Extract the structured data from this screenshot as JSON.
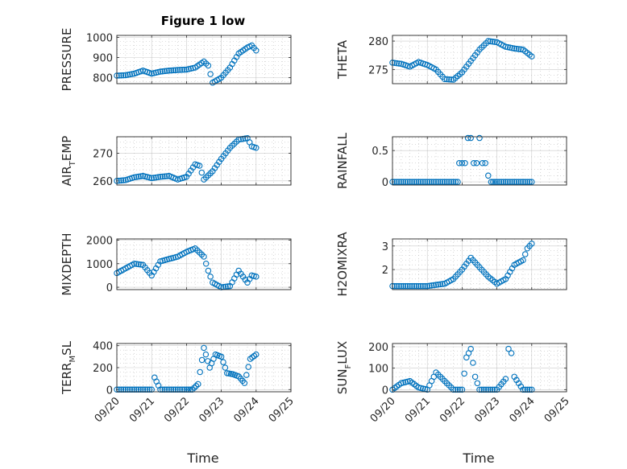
{
  "figure": {
    "title": "Figure 1 low"
  },
  "chart_data": [
    {
      "type": "scatter",
      "ylabel": "PRESSURE",
      "x_ticks": [
        "09/20",
        "09/21",
        "09/22",
        "09/23",
        "09/24",
        "09/25"
      ],
      "y_ticks": [
        "800",
        "900",
        "1000"
      ],
      "ylim": [
        770,
        1010
      ],
      "grid": true,
      "x": [
        "09/20 00:00",
        "09/20 06:00",
        "09/20 12:00",
        "09/20 18:00",
        "09/21 00:00",
        "09/21 06:00",
        "09/21 12:00",
        "09/21 18:00",
        "09/22 00:00",
        "09/22 06:00",
        "09/22 09:00",
        "09/22 12:00",
        "09/22 15:00",
        "09/22 18:00",
        "09/23 00:00",
        "09/23 06:00",
        "09/23 12:00",
        "09/23 18:00",
        "09/23 21:00",
        "09/24 00:00"
      ],
      "values": [
        810,
        812,
        820,
        835,
        820,
        830,
        835,
        838,
        840,
        850,
        865,
        880,
        860,
        775,
        800,
        850,
        920,
        950,
        960,
        935
      ]
    },
    {
      "type": "scatter",
      "ylabel": "THETA",
      "x_ticks": [
        "09/20",
        "09/21",
        "09/22",
        "09/23",
        "09/24",
        "09/25"
      ],
      "y_ticks": [
        "275",
        "280"
      ],
      "ylim": [
        272.5,
        281
      ],
      "grid": true,
      "x": [
        "09/20 00:00",
        "09/20 06:00",
        "09/20 12:00",
        "09/20 18:00",
        "09/21 00:00",
        "09/21 06:00",
        "09/21 12:00",
        "09/21 18:00",
        "09/22 00:00",
        "09/22 06:00",
        "09/22 12:00",
        "09/22 18:00",
        "09/23 00:00",
        "09/23 06:00",
        "09/23 12:00",
        "09/23 18:00",
        "09/24 00:00"
      ],
      "values": [
        276.2,
        276.0,
        275.5,
        276.3,
        275.8,
        275.0,
        273.3,
        273.2,
        274.5,
        276.5,
        278.5,
        280.0,
        279.8,
        279.0,
        278.7,
        278.5,
        277.3
      ]
    },
    {
      "type": "scatter",
      "ylabel": "AIR",
      "ylabel_sub": "T",
      "ylabel_tail": "EMP",
      "x_ticks": [
        "09/20",
        "09/21",
        "09/22",
        "09/23",
        "09/24",
        "09/25"
      ],
      "y_ticks": [
        "260",
        "270"
      ],
      "ylim": [
        258.5,
        276
      ],
      "grid": true,
      "x": [
        "09/20 00:00",
        "09/20 06:00",
        "09/20 12:00",
        "09/20 18:00",
        "09/21 00:00",
        "09/21 06:00",
        "09/21 12:00",
        "09/21 18:00",
        "09/22 00:00",
        "09/22 06:00",
        "09/22 09:00",
        "09/22 12:00",
        "09/22 18:00",
        "09/23 00:00",
        "09/23 06:00",
        "09/23 12:00",
        "09/23 18:00",
        "09/23 21:00",
        "09/24 00:00"
      ],
      "values": [
        260,
        260.3,
        261.3,
        261.8,
        261.0,
        261.5,
        261.8,
        260.5,
        261.5,
        266.0,
        265.5,
        260.5,
        263.5,
        268.0,
        272.0,
        275.0,
        275.5,
        272.5,
        272.0
      ]
    },
    {
      "type": "scatter",
      "ylabel": "RAINFALL",
      "x_ticks": [
        "09/20",
        "09/21",
        "09/22",
        "09/23",
        "09/24",
        "09/25"
      ],
      "y_ticks": [
        "0",
        "0.5"
      ],
      "ylim": [
        -0.05,
        0.72
      ],
      "grid": true,
      "x": [
        "09/20 00:00",
        "09/20 12:00",
        "09/21 00:00",
        "09/21 12:00",
        "09/21 21:00",
        "09/21 22:00",
        "09/22 00:00",
        "09/22 02:00",
        "09/22 04:00",
        "09/22 06:00",
        "09/22 08:00",
        "09/22 10:00",
        "09/22 12:00",
        "09/22 14:00",
        "09/22 16:00",
        "09/22 18:00",
        "09/22 20:00",
        "09/23 00:00",
        "09/23 12:00",
        "09/24 00:00"
      ],
      "values": [
        0,
        0,
        0,
        0,
        0,
        0.3,
        0.3,
        0.3,
        0.7,
        0.7,
        0.3,
        0.3,
        0.7,
        0.3,
        0.3,
        0.1,
        0,
        0,
        0,
        0
      ]
    },
    {
      "type": "scatter",
      "ylabel": "MIXDEPTH",
      "x_ticks": [
        "09/20",
        "09/21",
        "09/22",
        "09/23",
        "09/24",
        "09/25"
      ],
      "y_ticks": [
        "0",
        "1000",
        "2000"
      ],
      "ylim": [
        -100,
        2050
      ],
      "grid": true,
      "x": [
        "09/20 00:00",
        "09/20 06:00",
        "09/20 12:00",
        "09/20 18:00",
        "09/21 00:00",
        "09/21 06:00",
        "09/21 12:00",
        "09/21 18:00",
        "09/22 00:00",
        "09/22 06:00",
        "09/22 12:00",
        "09/22 15:00",
        "09/22 18:00",
        "09/23 00:00",
        "09/23 06:00",
        "09/23 12:00",
        "09/23 18:00",
        "09/23 21:00",
        "09/24 00:00"
      ],
      "values": [
        600,
        800,
        1000,
        950,
        500,
        1100,
        1200,
        1300,
        1500,
        1650,
        1300,
        700,
        200,
        0,
        50,
        700,
        200,
        500,
        450
      ]
    },
    {
      "type": "scatter",
      "ylabel": "H2OMIXRA",
      "x_ticks": [
        "09/20",
        "09/21",
        "09/22",
        "09/23",
        "09/24",
        "09/25"
      ],
      "y_ticks": [
        "2",
        "3"
      ],
      "ylim": [
        1.15,
        3.3
      ],
      "grid": true,
      "x": [
        "09/20 00:00",
        "09/20 12:00",
        "09/21 00:00",
        "09/21 12:00",
        "09/21 18:00",
        "09/22 00:00",
        "09/22 06:00",
        "09/22 12:00",
        "09/22 18:00",
        "09/23 00:00",
        "09/23 06:00",
        "09/23 12:00",
        "09/23 18:00",
        "09/23 21:00",
        "09/24 00:00"
      ],
      "values": [
        1.3,
        1.3,
        1.3,
        1.4,
        1.6,
        2.0,
        2.5,
        2.1,
        1.7,
        1.4,
        1.6,
        2.2,
        2.4,
        2.9,
        3.1
      ]
    },
    {
      "type": "scatter",
      "ylabel": "TERR",
      "ylabel_sub": "M",
      "ylabel_tail": "SL",
      "x_ticks": [
        "09/20",
        "09/21",
        "09/22",
        "09/23",
        "09/24",
        "09/25"
      ],
      "y_ticks": [
        "0",
        "200",
        "400"
      ],
      "ylim": [
        -20,
        420
      ],
      "grid": true,
      "x": [
        "09/20 00:00",
        "09/20 12:00",
        "09/21 00:00",
        "09/21 02:00",
        "09/21 06:00",
        "09/21 12:00",
        "09/22 00:00",
        "09/22 04:00",
        "09/22 08:00",
        "09/22 12:00",
        "09/22 16:00",
        "09/22 20:00",
        "09/23 00:00",
        "09/23 04:00",
        "09/23 08:00",
        "09/23 12:00",
        "09/23 16:00",
        "09/23 20:00",
        "09/24 00:00"
      ],
      "values": [
        0,
        0,
        0,
        110,
        0,
        0,
        0,
        0,
        50,
        380,
        200,
        320,
        300,
        150,
        140,
        120,
        60,
        280,
        320
      ]
    },
    {
      "type": "scatter",
      "ylabel": "SUN",
      "ylabel_sub": "F",
      "ylabel_tail": "LUX",
      "x_ticks": [
        "09/20",
        "09/21",
        "09/22",
        "09/23",
        "09/24",
        "09/25"
      ],
      "y_ticks": [
        "0",
        "100",
        "200"
      ],
      "ylim": [
        -10,
        215
      ],
      "grid": true,
      "x": [
        "09/20 00:00",
        "09/20 06:00",
        "09/20 12:00",
        "09/20 18:00",
        "09/21 00:00",
        "09/21 06:00",
        "09/21 12:00",
        "09/21 18:00",
        "09/22 00:00",
        "09/22 03:00",
        "09/22 06:00",
        "09/22 09:00",
        "09/22 12:00",
        "09/22 18:00",
        "09/23 00:00",
        "09/23 06:00",
        "09/23 08:00",
        "09/23 10:00",
        "09/23 12:00",
        "09/23 18:00",
        "09/24 00:00"
      ],
      "values": [
        0,
        30,
        40,
        10,
        0,
        80,
        40,
        0,
        0,
        150,
        190,
        60,
        0,
        0,
        0,
        50,
        190,
        170,
        60,
        0,
        0
      ]
    }
  ],
  "xlabel_bottom": "Time",
  "colors": {
    "marker": "#0072BD",
    "axis": "#262626",
    "grid": "#a6a6a6"
  }
}
